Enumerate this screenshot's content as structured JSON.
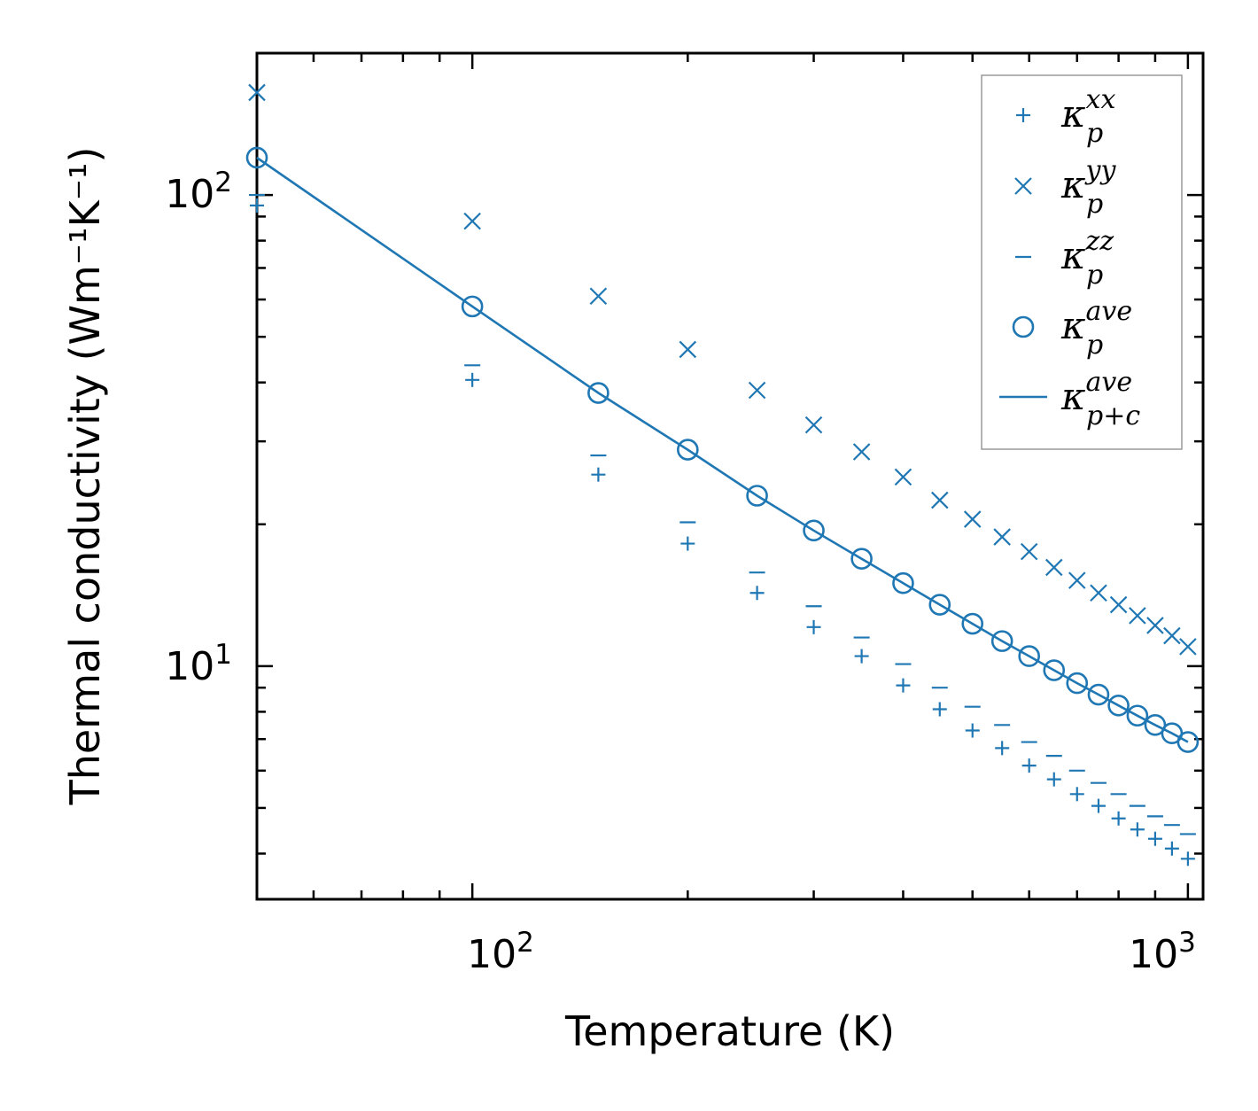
{
  "chart_data": {
    "type": "scatter",
    "title": "",
    "xlabel": "Temperature (K)",
    "ylabel": "Thermal conductivity (Wm⁻¹K⁻¹)",
    "xscale": "log",
    "yscale": "log",
    "xlim": [
      50,
      1050
    ],
    "ylim": [
      3.2,
      200
    ],
    "x_major_ticks": [
      {
        "value": 100,
        "base": "10",
        "exp": "2"
      },
      {
        "value": 1000,
        "base": "10",
        "exp": "3"
      }
    ],
    "y_major_ticks": [
      {
        "value": 10,
        "base": "10",
        "exp": "1"
      },
      {
        "value": 100,
        "base": "10",
        "exp": "2"
      }
    ],
    "color": "#1f77b4",
    "legend_position": "top-right",
    "x": [
      50,
      100,
      150,
      200,
      250,
      300,
      350,
      400,
      450,
      500,
      550,
      600,
      650,
      700,
      750,
      800,
      850,
      900,
      950,
      1000
    ],
    "series": [
      {
        "name": "kxx",
        "label": {
          "base": "κ",
          "sup": "xx",
          "sub": "p"
        },
        "marker": "plus",
        "values": [
          95,
          40.5,
          25.5,
          18.2,
          14.3,
          12.1,
          10.5,
          9.1,
          8.1,
          7.3,
          6.7,
          6.15,
          5.75,
          5.35,
          5.05,
          4.75,
          4.5,
          4.3,
          4.1,
          3.9
        ]
      },
      {
        "name": "kyy",
        "label": {
          "base": "κ",
          "sup": "yy",
          "sub": "p"
        },
        "marker": "x",
        "values": [
          165,
          88,
          61,
          47,
          38.5,
          32.5,
          28.5,
          25.2,
          22.5,
          20.5,
          18.8,
          17.5,
          16.2,
          15.2,
          14.3,
          13.5,
          12.8,
          12.2,
          11.6,
          11.0
        ]
      },
      {
        "name": "kzz",
        "label": {
          "base": "κ",
          "sup": "zz",
          "sub": "p"
        },
        "marker": "hline",
        "values": [
          100,
          43.5,
          28,
          20.2,
          15.8,
          13.4,
          11.5,
          10.1,
          9.0,
          8.2,
          7.5,
          6.9,
          6.45,
          6.0,
          5.65,
          5.35,
          5.05,
          4.8,
          4.6,
          4.4
        ]
      },
      {
        "name": "kave",
        "label": {
          "base": "κ",
          "sup": "ave",
          "sub": "p"
        },
        "marker": "circle",
        "values": [
          120,
          58,
          38,
          28.8,
          23.0,
          19.4,
          16.9,
          15.0,
          13.5,
          12.3,
          11.3,
          10.5,
          9.8,
          9.2,
          8.7,
          8.25,
          7.85,
          7.5,
          7.2,
          6.9
        ]
      },
      {
        "name": "kave_pc",
        "label": {
          "base": "κ",
          "sup": "ave",
          "sub": "p+c"
        },
        "marker": "line",
        "values": [
          120,
          58,
          38,
          28.8,
          23.0,
          19.4,
          16.9,
          15.0,
          13.5,
          12.3,
          11.3,
          10.5,
          9.8,
          9.2,
          8.7,
          8.25,
          7.85,
          7.5,
          7.2,
          6.9
        ]
      }
    ]
  }
}
